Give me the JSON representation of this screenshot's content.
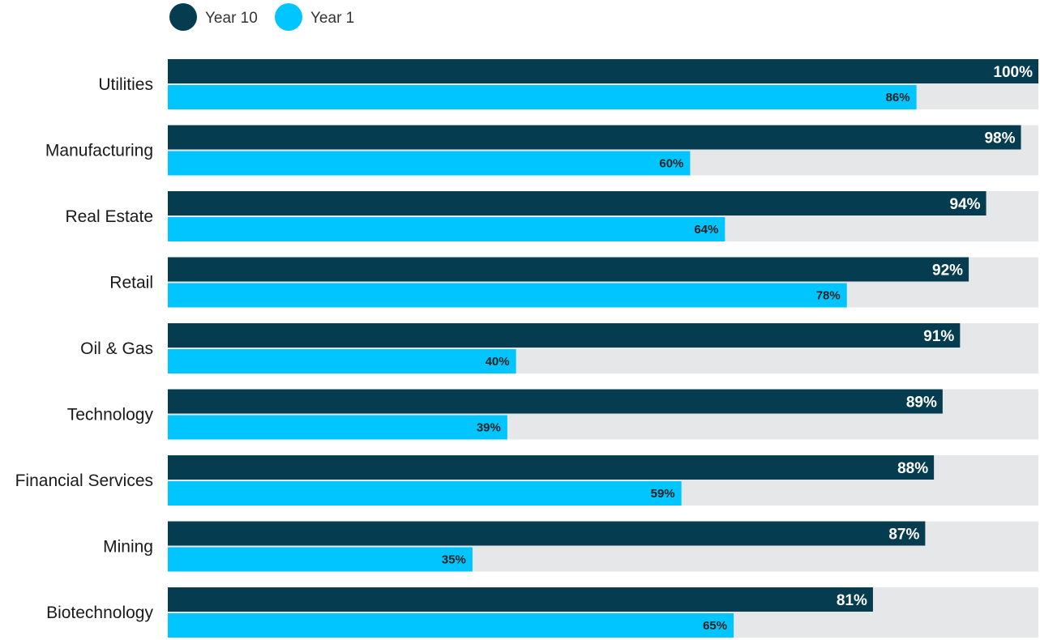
{
  "chart_data": {
    "type": "bar",
    "orientation": "horizontal",
    "title": "",
    "xlabel": "",
    "ylabel": "",
    "xlim": [
      0,
      100
    ],
    "grid": false,
    "legend_position": "top-left",
    "categories": [
      "Utilities",
      "Manufacturing",
      "Real Estate",
      "Retail",
      "Oil & Gas",
      "Technology",
      "Financial Services",
      "Mining",
      "Biotechnology"
    ],
    "series": [
      {
        "name": "Year 10",
        "color": "#053c4f",
        "values": [
          100,
          98,
          94,
          92,
          91,
          89,
          88,
          87,
          81
        ],
        "labels": [
          "100%",
          "98%",
          "94%",
          "92%",
          "91%",
          "89%",
          "88%",
          "87%",
          "81%"
        ]
      },
      {
        "name": "Year 1",
        "color": "#00c5ff",
        "values": [
          86,
          60,
          64,
          78,
          40,
          39,
          59,
          35,
          65
        ],
        "labels": [
          "86%",
          "60%",
          "64%",
          "78%",
          "40%",
          "39%",
          "59%",
          "35%",
          "65%"
        ]
      }
    ],
    "track_color": "#e6e7e9"
  }
}
